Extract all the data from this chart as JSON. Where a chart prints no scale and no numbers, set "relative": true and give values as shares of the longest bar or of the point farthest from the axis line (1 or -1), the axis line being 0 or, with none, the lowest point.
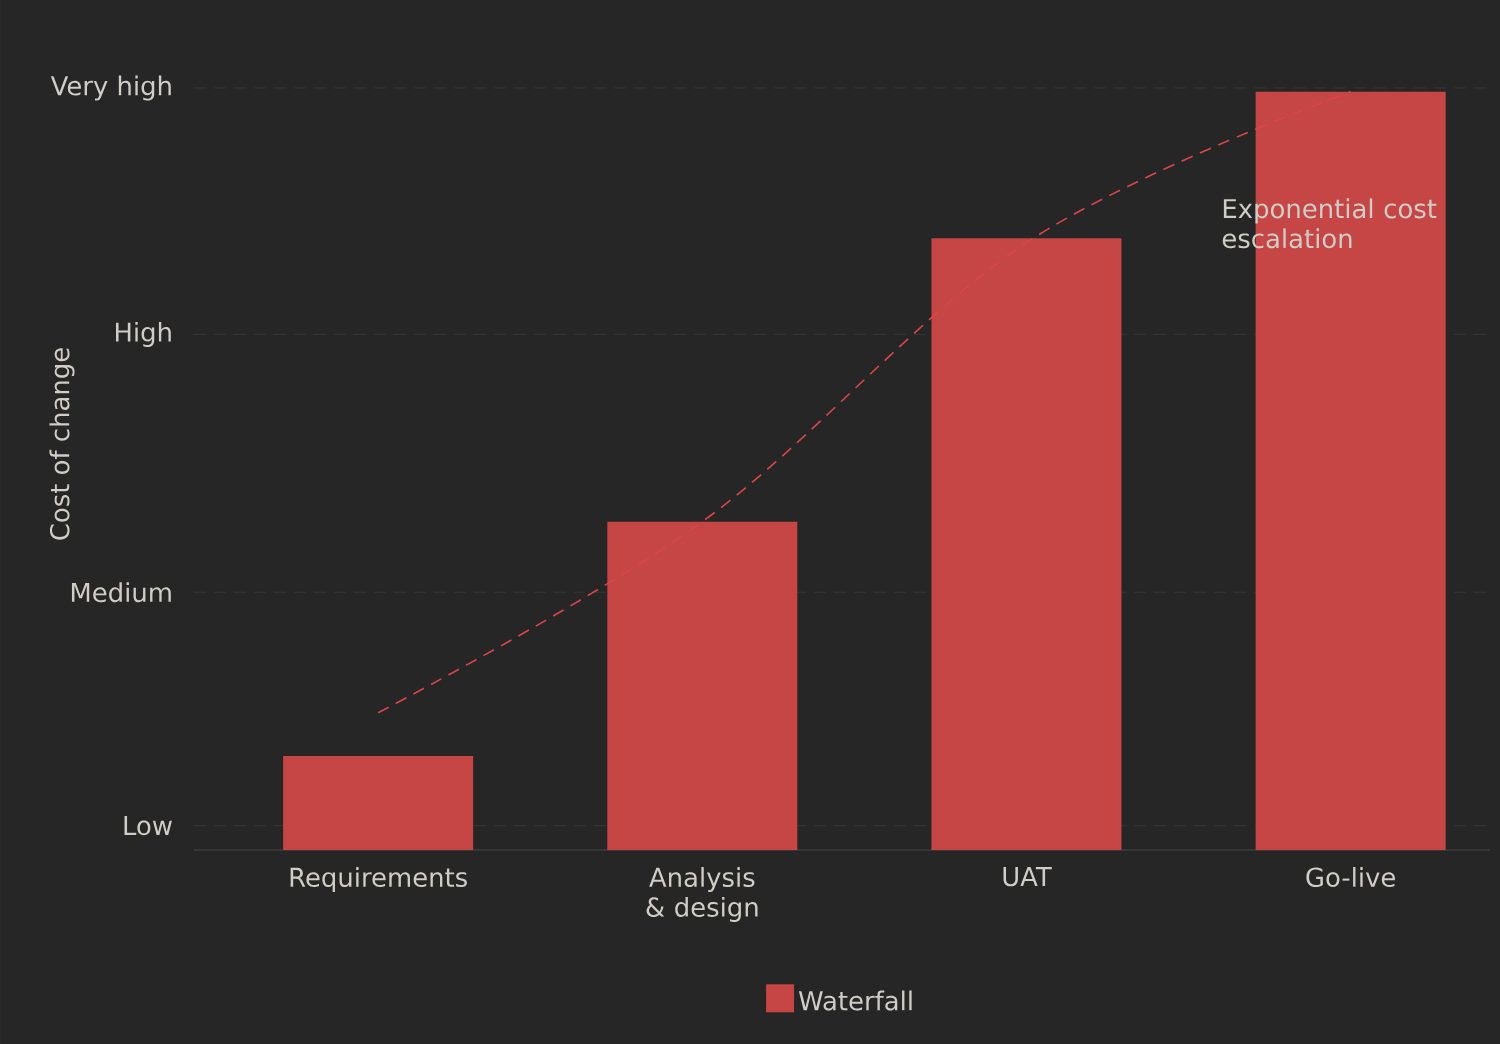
{
  "chart_data": {
    "type": "bar",
    "ylabel": "Cost of change",
    "relative": true,
    "categories": [
      "Requirements",
      "Analysis & design",
      "UAT",
      "Go-live"
    ],
    "series": [
      {
        "name": "Waterfall",
        "color": "#c64545",
        "values": [
          0.124,
          0.433,
          0.807,
          1
        ]
      },
      {
        "type": "line",
        "color": "#d9464a",
        "line_style": "dashed",
        "values": [
          0.181,
          0.433,
          0.801,
          1
        ]
      }
    ],
    "ref_lines": [
      {
        "axis": "y",
        "value": 0.032,
        "label": "Low",
        "color": "#3a3a3a",
        "line_style": "dashed"
      },
      {
        "axis": "y",
        "value": 0.34,
        "label": "Medium",
        "color": "#3a3a3a",
        "line_style": "dashed"
      },
      {
        "axis": "y",
        "value": 0.68,
        "label": "High",
        "color": "#3a3a3a",
        "line_style": "dashed"
      },
      {
        "axis": "y",
        "value": 1.005,
        "label": "Very high",
        "color": "#3a3a3a",
        "line_style": "dashed"
      }
    ],
    "annotations": [
      "Exponential cost escalation"
    ],
    "legend": "bottom"
  }
}
